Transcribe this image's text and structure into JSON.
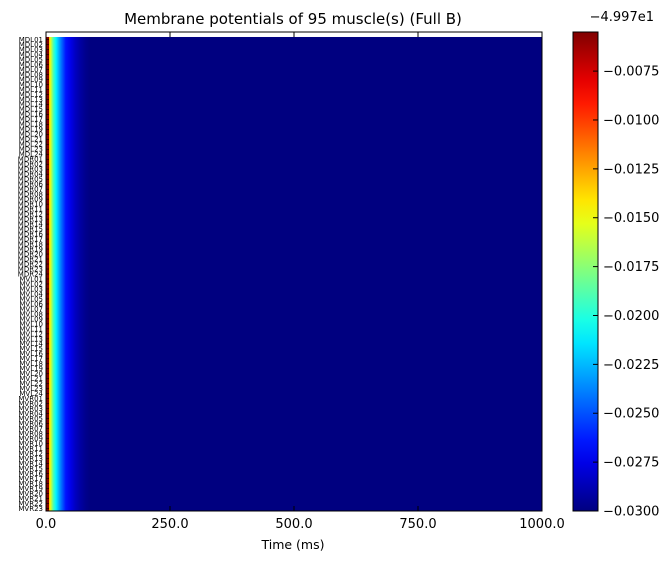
{
  "chart_data": {
    "type": "heatmap",
    "title": "Membrane potentials of 95 muscle(s) (Full B)",
    "xlabel": "Time (ms)",
    "ylabel": "",
    "xlim": [
      0,
      1000
    ],
    "x_ticks": [
      0,
      250,
      500,
      750,
      1000
    ],
    "x_tick_labels": [
      "0.0",
      "250.0",
      "500.0",
      "750.0",
      "1000.0"
    ],
    "colormap": "jet",
    "colorbar": {
      "offset_label": "−4.997e1",
      "range": [
        -0.03,
        -0.0055
      ],
      "ticks": [
        -0.03,
        -0.0275,
        -0.025,
        -0.0225,
        -0.02,
        -0.0175,
        -0.015,
        -0.0125,
        -0.01,
        -0.0075
      ],
      "tick_labels": [
        "−0.0300",
        "−0.0275",
        "−0.0250",
        "−0.0225",
        "−0.0200",
        "−0.0175",
        "−0.0150",
        "−0.0125",
        "−0.0100",
        "−0.0075"
      ]
    },
    "row_labels": [
      "MDL01",
      "MDL02",
      "MDL03",
      "MDL04",
      "MDL05",
      "MDL06",
      "MDL07",
      "MDL08",
      "MDL09",
      "MDL10",
      "MDL11",
      "MDL12",
      "MDL13",
      "MDL14",
      "MDL15",
      "MDL16",
      "MDL17",
      "MDL18",
      "MDL19",
      "MDL20",
      "MDL21",
      "MDL22",
      "MDL23",
      "MDL24",
      "MDR01",
      "MDR02",
      "MDR03",
      "MDR04",
      "MDR05",
      "MDR06",
      "MDR07",
      "MDR08",
      "MDR09",
      "MDR10",
      "MDR11",
      "MDR12",
      "MDR13",
      "MDR14",
      "MDR15",
      "MDR16",
      "MDR17",
      "MDR18",
      "MDR19",
      "MDR20",
      "MDR21",
      "MDR22",
      "MDR23",
      "MDR24",
      "MVL01",
      "MVL02",
      "MVL03",
      "MVL04",
      "MVL05",
      "MVL06",
      "MVL07",
      "MVL08",
      "MVL09",
      "MVL10",
      "MVL11",
      "MVL12",
      "MVL13",
      "MVL14",
      "MVL15",
      "MVL16",
      "MVL17",
      "MVL18",
      "MVL19",
      "MVL20",
      "MVL21",
      "MVL22",
      "MVL23",
      "MVL24",
      "MVR01",
      "MVR02",
      "MVR03",
      "MVR04",
      "MVR05",
      "MVR06",
      "MVR07",
      "MVR08",
      "MVR09",
      "MVR10",
      "MVR11",
      "MVR12",
      "MVR13",
      "MVR14",
      "MVR15",
      "MVR16",
      "MVR17",
      "MVR18",
      "MVR19",
      "MVR20",
      "MVR21",
      "MVR22",
      "MVR23"
    ],
    "profile": {
      "time_ms": [
        0,
        2,
        4,
        6,
        8,
        10,
        15,
        20,
        25,
        30,
        40,
        50,
        60,
        70,
        80,
        90,
        1000
      ],
      "value_offset": [
        -0.0055,
        -0.008,
        -0.0105,
        -0.0125,
        -0.0145,
        -0.016,
        -0.019,
        -0.021,
        -0.0225,
        -0.024,
        -0.0265,
        -0.0275,
        -0.0285,
        -0.0292,
        -0.0297,
        -0.03,
        -0.03
      ]
    },
    "empty_top_rows": 1
  }
}
